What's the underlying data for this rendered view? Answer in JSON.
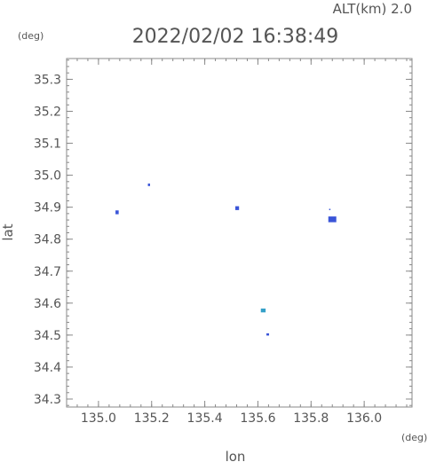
{
  "chart_data": {
    "type": "scatter",
    "header": {
      "altitude": "ALT(km)  2.0",
      "timestamp": "2022/02/02 16:38:49"
    },
    "xlabel": "lon",
    "ylabel": "lat",
    "x_unit": "(deg)",
    "y_unit": "(deg)",
    "xlim": [
      134.88,
      136.18
    ],
    "ylim": [
      34.275,
      35.365
    ],
    "x_ticks": [
      135.0,
      135.2,
      135.4,
      135.6,
      135.8,
      136.0
    ],
    "x_tick_labels": [
      "135.0",
      "135.2",
      "135.4",
      "135.6",
      "135.8",
      "136.0"
    ],
    "y_ticks": [
      34.3,
      34.4,
      34.5,
      34.6,
      34.7,
      34.8,
      34.9,
      35.0,
      35.1,
      35.2,
      35.3
    ],
    "y_tick_labels": [
      "34.3",
      "34.4",
      "34.5",
      "34.6",
      "34.7",
      "34.8",
      "34.9",
      "35.0",
      "35.1",
      "35.2",
      "35.3"
    ],
    "minor_ticks_per_major": 5,
    "grid": false,
    "points": [
      {
        "lon": 135.07,
        "lat": 34.884,
        "w": 0.012,
        "h": 0.012,
        "color": "#3a55d8"
      },
      {
        "lon": 135.19,
        "lat": 34.97,
        "w": 0.008,
        "h": 0.008,
        "color": "#3a55d8"
      },
      {
        "lon": 135.522,
        "lat": 34.897,
        "w": 0.014,
        "h": 0.012,
        "color": "#3a55d8"
      },
      {
        "lon": 135.62,
        "lat": 34.577,
        "w": 0.018,
        "h": 0.012,
        "color": "#35a0c8"
      },
      {
        "lon": 135.637,
        "lat": 34.502,
        "w": 0.01,
        "h": 0.007,
        "color": "#3a55d8"
      },
      {
        "lon": 135.88,
        "lat": 34.862,
        "w": 0.03,
        "h": 0.018,
        "color": "#3a55d8"
      },
      {
        "lon": 135.87,
        "lat": 34.893,
        "w": 0.004,
        "h": 0.004,
        "color": "#3a55d8"
      }
    ],
    "colors": {
      "frame": "#888888",
      "text": "#555555",
      "background": "#ffffff"
    }
  }
}
